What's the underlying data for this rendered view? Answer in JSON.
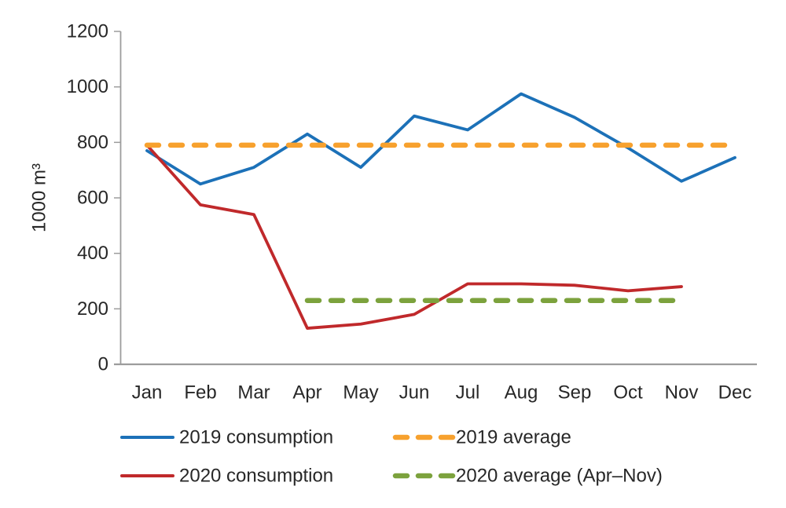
{
  "chart_data": {
    "type": "line",
    "title": "",
    "xlabel": "",
    "ylabel": "1000 m³",
    "ylim": [
      0,
      1200
    ],
    "yticks": [
      0,
      200,
      400,
      600,
      800,
      1000,
      1200
    ],
    "grid": false,
    "legend_position": "bottom",
    "categories": [
      "Jan",
      "Feb",
      "Mar",
      "Apr",
      "May",
      "Jun",
      "Jul",
      "Aug",
      "Sep",
      "Oct",
      "Nov",
      "Dec"
    ],
    "series": [
      {
        "name": "2019 consumption",
        "kind": "line",
        "dash": false,
        "color": "#1C71B8",
        "start_index": 0,
        "values": [
          770,
          650,
          710,
          830,
          710,
          895,
          845,
          975,
          890,
          780,
          660,
          745
        ]
      },
      {
        "name": "2020 consumption",
        "kind": "line",
        "dash": false,
        "color": "#C0292B",
        "start_index": 0,
        "values": [
          790,
          575,
          540,
          130,
          145,
          180,
          290,
          290,
          285,
          265,
          280
        ]
      },
      {
        "name": "2019 average",
        "kind": "reference-line",
        "dash": true,
        "color": "#F7A12E",
        "value": 790,
        "span_categories": [
          "Jan",
          "Dec"
        ]
      },
      {
        "name": "2020 average (Apr–Nov)",
        "kind": "reference-line",
        "dash": true,
        "color": "#7CA23D",
        "value": 230,
        "span_categories": [
          "Apr",
          "Nov"
        ]
      }
    ],
    "colors": {
      "axis": "#9C9C9C",
      "text": "#272727",
      "background": "#FFFFFF"
    }
  }
}
